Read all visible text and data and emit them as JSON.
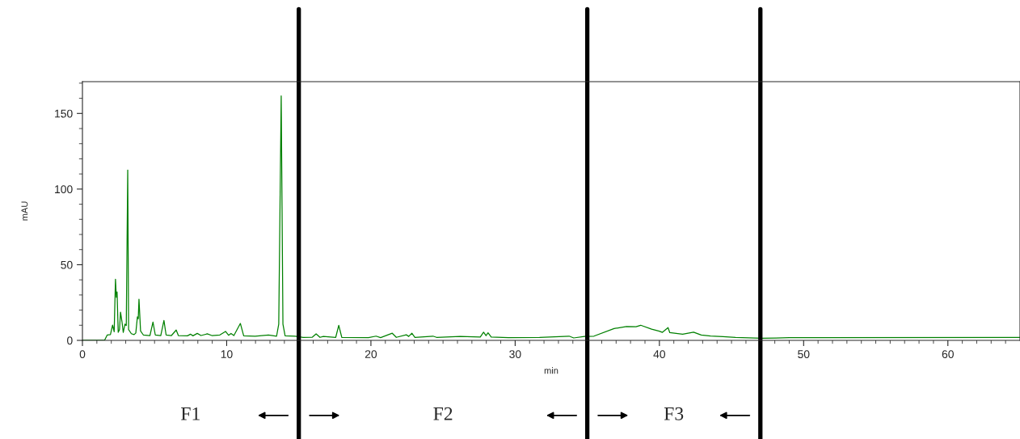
{
  "chart_data": {
    "type": "line",
    "xlabel": "min",
    "ylabel": "mAU",
    "xlim": [
      0,
      65
    ],
    "ylim": [
      0,
      171
    ],
    "xticks": [
      0,
      10,
      20,
      30,
      40,
      50,
      60,
      {
        "value": 1,
        "label": null
      },
      {
        "value": 2,
        "label": null
      },
      {
        "value": 3,
        "label": null
      },
      {
        "value": 4,
        "label": null
      },
      {
        "value": 5,
        "label": null
      },
      {
        "value": 6,
        "label": null
      },
      {
        "value": 7,
        "label": null
      },
      {
        "value": 8,
        "label": null
      },
      {
        "value": 9,
        "label": null
      },
      {
        "value": 11,
        "label": null
      },
      {
        "value": 12,
        "label": null
      },
      {
        "value": 13,
        "label": null
      },
      {
        "value": 14,
        "label": null
      },
      {
        "value": 15,
        "label": null
      },
      {
        "value": 16,
        "label": null
      },
      {
        "value": 17,
        "label": null
      },
      {
        "value": 18,
        "label": null
      },
      {
        "value": 19,
        "label": null
      },
      {
        "value": 21,
        "label": null
      },
      {
        "value": 22,
        "label": null
      },
      {
        "value": 23,
        "label": null
      },
      {
        "value": 24,
        "label": null
      },
      {
        "value": 25,
        "label": null
      },
      {
        "value": 26,
        "label": null
      },
      {
        "value": 27,
        "label": null
      },
      {
        "value": 28,
        "label": null
      },
      {
        "value": 29,
        "label": null
      },
      {
        "value": 31,
        "label": null
      },
      {
        "value": 32,
        "label": null
      },
      {
        "value": 33,
        "label": null
      },
      {
        "value": 34,
        "label": null
      },
      {
        "value": 35,
        "label": null
      },
      {
        "value": 36,
        "label": null
      },
      {
        "value": 37,
        "label": null
      },
      {
        "value": 38,
        "label": null
      },
      {
        "value": 39,
        "label": null
      },
      {
        "value": 41,
        "label": null
      },
      {
        "value": 42,
        "label": null
      },
      {
        "value": 43,
        "label": null
      },
      {
        "value": 44,
        "label": null
      },
      {
        "value": 45,
        "label": null
      },
      {
        "value": 46,
        "label": null
      },
      {
        "value": 47,
        "label": null
      },
      {
        "value": 48,
        "label": null
      },
      {
        "value": 49,
        "label": null
      },
      {
        "value": 51,
        "label": null
      },
      {
        "value": 52,
        "label": null
      },
      {
        "value": 53,
        "label": null
      },
      {
        "value": 54,
        "label": null
      },
      {
        "value": 55,
        "label": null
      },
      {
        "value": 56,
        "label": null
      },
      {
        "value": 57,
        "label": null
      },
      {
        "value": 58,
        "label": null
      },
      {
        "value": 59,
        "label": null
      },
      {
        "value": 61,
        "label": null
      },
      {
        "value": 62,
        "label": null
      },
      {
        "value": 63,
        "label": null
      },
      {
        "value": 64,
        "label": null
      }
    ],
    "yticks": [
      0,
      50,
      100,
      150,
      {
        "value": 10,
        "label": null
      },
      {
        "value": 20,
        "label": null
      },
      {
        "value": 30,
        "label": null
      },
      {
        "value": 40,
        "label": null
      },
      {
        "value": 60,
        "label": null
      },
      {
        "value": 70,
        "label": null
      },
      {
        "value": 80,
        "label": null
      },
      {
        "value": 90,
        "label": null
      },
      {
        "value": 110,
        "label": null
      },
      {
        "value": 120,
        "label": null
      },
      {
        "value": 130,
        "label": null
      },
      {
        "value": 140,
        "label": null
      },
      {
        "value": 160,
        "label": null
      },
      {
        "value": 170,
        "label": null
      }
    ],
    "grid": false,
    "legend": false,
    "marker": "none",
    "line_style": "solid",
    "series": [
      {
        "color": "#008000",
        "x": [
          0,
          1.53,
          1.72,
          1.94,
          2.09,
          2.2,
          2.29,
          2.35,
          2.4,
          2.48,
          2.57,
          2.64,
          2.74,
          2.83,
          2.95,
          3.04,
          3.14,
          3.2,
          3.39,
          3.58,
          3.7,
          3.81,
          3.87,
          3.92,
          4.03,
          4.22,
          4.68,
          4.89,
          5.05,
          5.43,
          5.65,
          5.8,
          6.17,
          6.5,
          6.65,
          7.28,
          7.49,
          7.66,
          7.96,
          8.22,
          8.65,
          8.97,
          9.53,
          9.92,
          10.13,
          10.3,
          10.5,
          10.95,
          11.18,
          11.97,
          12.9,
          13.46,
          13.61,
          13.78,
          13.9,
          14.05,
          14.76,
          15.3,
          15.94,
          16.2,
          16.47,
          16.7,
          17.56,
          17.77,
          17.98,
          19.83,
          20.36,
          20.67,
          21.48,
          21.76,
          22.45,
          22.62,
          22.84,
          23.05,
          24.3,
          24.55,
          26.19,
          27.58,
          27.81,
          27.98,
          28.12,
          28.34,
          29.53,
          31.69,
          33.74,
          34.06,
          34.81,
          35.46,
          36.86,
          37.72,
          38.38,
          38.7,
          39.46,
          39.99,
          40.21,
          40.6,
          40.72,
          41.61,
          42.37,
          42.9,
          43.55,
          44.41,
          45.28,
          47.11,
          48.08,
          49,
          65
        ],
        "values": [
          0,
          0,
          3.6,
          3.8,
          10.1,
          5.7,
          40.4,
          28.5,
          32,
          5.3,
          7.1,
          18.7,
          12.4,
          5.3,
          10.7,
          9.8,
          112.6,
          7.1,
          4.4,
          3.8,
          4.9,
          15.5,
          14.3,
          27.2,
          6.2,
          3.6,
          3.2,
          12.1,
          3.6,
          3.2,
          13.2,
          3.6,
          3.2,
          6.8,
          3.2,
          3,
          4.1,
          3,
          4.6,
          3.2,
          4.3,
          3.2,
          3.6,
          5.9,
          3.4,
          4.6,
          3.2,
          11.2,
          3,
          2.8,
          3.6,
          2.8,
          10.7,
          161.6,
          10.7,
          3,
          2.7,
          2.0,
          2.1,
          4.3,
          2.0,
          2.6,
          2.0,
          10.0,
          2.0,
          1.8,
          2.8,
          1.8,
          4.7,
          2.0,
          3.7,
          2.6,
          4.7,
          2.0,
          2.8,
          2.0,
          2.6,
          2.2,
          5.4,
          3.1,
          5.0,
          2.2,
          1.8,
          2.0,
          2.8,
          1.6,
          2.6,
          2.8,
          7.8,
          9.2,
          9.0,
          10.0,
          7.4,
          6.1,
          5.3,
          8.4,
          5.1,
          4.1,
          5.4,
          3.5,
          2.9,
          2.5,
          2.0,
          1.4,
          1.6,
          1.8,
          2.0
        ]
      }
    ],
    "ref_lines": [
      {
        "axis": "x",
        "value": 15,
        "color": "#000000"
      },
      {
        "axis": "x",
        "value": 35,
        "color": "#000000"
      },
      {
        "axis": "x",
        "value": 47,
        "color": "#000000"
      }
    ],
    "annotations": [
      "F1",
      "F2",
      "F3"
    ]
  }
}
